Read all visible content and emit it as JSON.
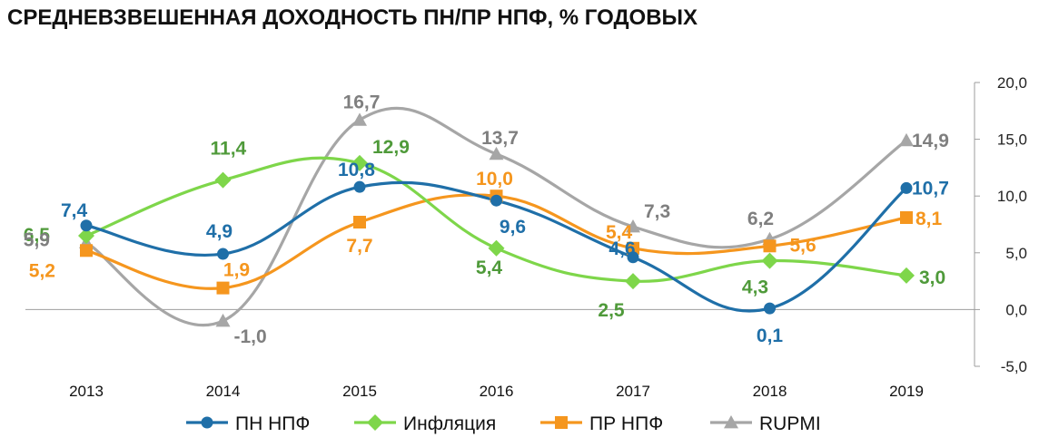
{
  "chart_data": {
    "type": "line",
    "title": "СРЕДНЕВЗВЕШЕННАЯ ДОХОДНОСТЬ ПН/ПР НПФ, % ГОДОВЫХ",
    "categories": [
      "2013",
      "2014",
      "2015",
      "2016",
      "2017",
      "2018",
      "2019"
    ],
    "ylim": [
      -5,
      20
    ],
    "yticks": [
      "20,0",
      "15,0",
      "10,0",
      "5,0",
      "0,0",
      "-5,0"
    ],
    "y_axis_side": "right",
    "grid": false,
    "smooth": true,
    "legend_position": "bottom",
    "series": [
      {
        "name": "ПН НПФ",
        "color": "#1f6fa8",
        "marker": "circle",
        "values": [
          7.4,
          4.9,
          10.8,
          9.6,
          4.6,
          0.1,
          10.7
        ],
        "labels": [
          "7,4",
          "4,9",
          "10,8",
          "9,6",
          "4,6",
          "0,1",
          "10,7"
        ]
      },
      {
        "name": "Инфляция",
        "color": "#7ed64a",
        "label_color": "#4f9a3a",
        "marker": "diamond",
        "values": [
          6.5,
          11.4,
          12.9,
          5.4,
          2.5,
          4.3,
          3.0
        ],
        "labels": [
          "6,5",
          "11,4",
          "12,9",
          "5,4",
          "2,5",
          "4,3",
          "3,0"
        ]
      },
      {
        "name": "ПР НПФ",
        "color": "#f5961e",
        "marker": "square",
        "values": [
          5.2,
          1.9,
          7.7,
          10.0,
          5.4,
          5.6,
          8.1
        ],
        "labels": [
          "5,2",
          "1,9",
          "7,7",
          "10,0",
          "5,4",
          "5,6",
          "8,1"
        ]
      },
      {
        "name": "RUPMI",
        "color": "#a6a6a6",
        "label_color": "#7f7f7f",
        "marker": "triangle",
        "values": [
          5.9,
          -1.0,
          16.7,
          13.7,
          7.3,
          6.2,
          14.9
        ],
        "labels": [
          "5,9",
          "-1,0",
          "16,7",
          "13,7",
          "7,3",
          "6,2",
          "14,9"
        ]
      }
    ]
  }
}
